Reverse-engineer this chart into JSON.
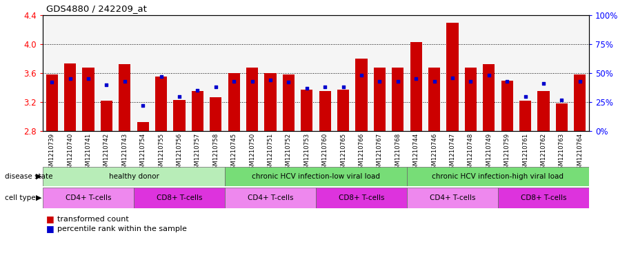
{
  "title": "GDS4880 / 242209_at",
  "samples": [
    "GSM1210739",
    "GSM1210740",
    "GSM1210741",
    "GSM1210742",
    "GSM1210743",
    "GSM1210754",
    "GSM1210755",
    "GSM1210756",
    "GSM1210757",
    "GSM1210758",
    "GSM1210745",
    "GSM1210750",
    "GSM1210751",
    "GSM1210752",
    "GSM1210753",
    "GSM1210760",
    "GSM1210765",
    "GSM1210766",
    "GSM1210767",
    "GSM1210768",
    "GSM1210744",
    "GSM1210746",
    "GSM1210747",
    "GSM1210748",
    "GSM1210749",
    "GSM1210759",
    "GSM1210761",
    "GSM1210762",
    "GSM1210763",
    "GSM1210764"
  ],
  "bar_values": [
    3.58,
    3.73,
    3.68,
    3.22,
    3.72,
    2.92,
    3.55,
    3.23,
    3.35,
    3.27,
    3.6,
    3.68,
    3.6,
    3.58,
    3.37,
    3.35,
    3.37,
    3.8,
    3.68,
    3.68,
    4.03,
    3.68,
    4.3,
    3.68,
    3.72,
    3.5,
    3.22,
    3.35,
    3.18,
    3.58
  ],
  "percentile_values": [
    42,
    45,
    45,
    40,
    43,
    22,
    47,
    30,
    35,
    38,
    43,
    43,
    44,
    42,
    37,
    38,
    38,
    48,
    43,
    43,
    45,
    43,
    46,
    43,
    48,
    43,
    30,
    41,
    27,
    43
  ],
  "ymin": 2.8,
  "ymax": 4.4,
  "yticks": [
    2.8,
    3.2,
    3.6,
    4.0,
    4.4
  ],
  "right_yticks": [
    0,
    25,
    50,
    75,
    100
  ],
  "right_ylabels": [
    "0%",
    "25%",
    "50%",
    "75%",
    "100%"
  ],
  "bar_color": "#cc0000",
  "percentile_color": "#0000cc",
  "bg_color": "#ffffff",
  "plot_bg": "#f5f5f5",
  "cd4_color": "#ee88ee",
  "cd8_color": "#dd44dd",
  "ds_light_green": "#99ee99",
  "ds_dark_green": "#44cc44",
  "ds_groups": [
    {
      "label": "healthy donor",
      "start": 0,
      "end": 10
    },
    {
      "label": "chronic HCV infection-low viral load",
      "start": 10,
      "end": 20
    },
    {
      "label": "chronic HCV infection-high viral load",
      "start": 20,
      "end": 30
    }
  ],
  "ct_groups": [
    {
      "label": "CD4+ T-cells",
      "start": 0,
      "end": 5,
      "type": "cd4"
    },
    {
      "label": "CD8+ T-cells",
      "start": 5,
      "end": 10,
      "type": "cd8"
    },
    {
      "label": "CD4+ T-cells",
      "start": 10,
      "end": 15,
      "type": "cd4"
    },
    {
      "label": "CD8+ T-cells",
      "start": 15,
      "end": 20,
      "type": "cd8"
    },
    {
      "label": "CD4+ T-cells",
      "start": 20,
      "end": 25,
      "type": "cd4"
    },
    {
      "label": "CD8+ T-cells",
      "start": 25,
      "end": 30,
      "type": "cd8"
    }
  ]
}
